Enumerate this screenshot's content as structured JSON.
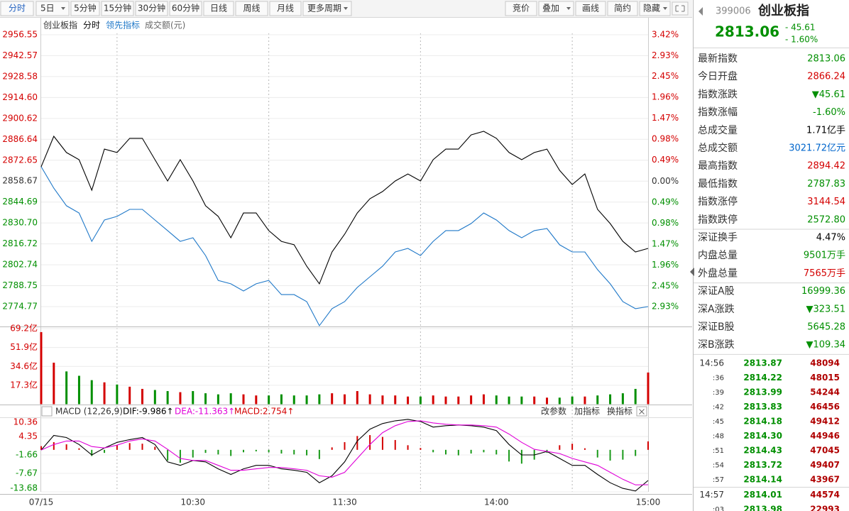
{
  "toolbar": {
    "periods": [
      "分时",
      "5日",
      "5分钟",
      "15分钟",
      "30分钟",
      "60分钟",
      "日线",
      "周线",
      "月线",
      "更多周期"
    ],
    "tools": [
      "竞价",
      "叠加",
      "画线",
      "简约",
      "隐藏"
    ]
  },
  "chart_data": [
    {
      "type": "line",
      "subtitle": "分时",
      "up_color": "#d40000",
      "down_color": "#008f00",
      "x": [
        0,
        5,
        10,
        15,
        20,
        25,
        30,
        35,
        40,
        45,
        50,
        55,
        60,
        65,
        70,
        75,
        80,
        85,
        90,
        95,
        100,
        105,
        110,
        115,
        120,
        125,
        130,
        135,
        140,
        145,
        150,
        155,
        160,
        165,
        170,
        175,
        180,
        185,
        190,
        195,
        200,
        205,
        210,
        215,
        220,
        225,
        230,
        235,
        240
      ],
      "xlim": [
        0,
        240
      ],
      "xgrid": [
        30,
        90,
        150,
        210
      ],
      "ylim": [
        2761.49,
        2957.5
      ],
      "yticks": [
        {
          "value": 2956.55,
          "label": "2956.55"
        },
        {
          "value": 2942.57,
          "label": "2942.57"
        },
        {
          "value": 2928.58,
          "label": "2928.58"
        },
        {
          "value": 2914.6,
          "label": "2914.60"
        },
        {
          "value": 2900.62,
          "label": "2900.62"
        },
        {
          "value": 2886.64,
          "label": "2886.64"
        },
        {
          "value": 2872.65,
          "label": "2872.65"
        },
        {
          "value": 2858.67,
          "label": "2858.67"
        },
        {
          "value": 2844.69,
          "label": "2844.69"
        },
        {
          "value": 2830.7,
          "label": "2830.70"
        },
        {
          "value": 2816.72,
          "label": "2816.72"
        },
        {
          "value": 2802.74,
          "label": "2802.74"
        },
        {
          "value": 2788.75,
          "label": "2788.75"
        },
        {
          "value": 2774.77,
          "label": "2774.77"
        }
      ],
      "y2lim": [
        -3.394,
        3.453
      ],
      "y2ticks": [
        {
          "value": 3.42,
          "label": "3.42%"
        },
        {
          "value": 2.93,
          "label": "2.93%"
        },
        {
          "value": 2.45,
          "label": "2.45%"
        },
        {
          "value": 1.96,
          "label": "1.96%"
        },
        {
          "value": 1.47,
          "label": "1.47%"
        },
        {
          "value": 0.98,
          "label": "0.98%"
        },
        {
          "value": 0.49,
          "label": "0.49%"
        },
        {
          "value": 0,
          "label": "0.00%"
        },
        {
          "value": -0.49,
          "label": "0.49%"
        },
        {
          "value": -0.98,
          "label": "0.98%"
        },
        {
          "value": -1.47,
          "label": "1.47%"
        },
        {
          "value": -1.96,
          "label": "1.96%"
        },
        {
          "value": -2.45,
          "label": "2.45%"
        },
        {
          "value": -2.93,
          "label": "2.93%"
        }
      ],
      "series": [
        {
          "name": "创业板指",
          "color": "#000000",
          "values": [
            2868.3,
            2888.7,
            2877.8,
            2873.0,
            2852.6,
            2880.1,
            2877.8,
            2887.3,
            2887.3,
            2873.0,
            2858.8,
            2873.0,
            2858.8,
            2842.2,
            2835.1,
            2820.8,
            2837.4,
            2837.4,
            2825.6,
            2818.4,
            2816.1,
            2801.8,
            2790.0,
            2811.3,
            2823.2,
            2837.4,
            2846.9,
            2851.7,
            2858.8,
            2863.5,
            2858.8,
            2873.0,
            2880.1,
            2880.1,
            2889.6,
            2892.0,
            2887.3,
            2877.8,
            2873.0,
            2877.8,
            2880.1,
            2865.9,
            2856.4,
            2863.5,
            2839.8,
            2830.3,
            2818.4,
            2811.3,
            2813.7
          ]
        },
        {
          "name": "领先指标",
          "color": "#1f78c8",
          "values": [
            2868.3,
            2854.0,
            2842.2,
            2837.4,
            2818.4,
            2832.7,
            2835.1,
            2839.8,
            2839.8,
            2832.7,
            2825.6,
            2818.4,
            2820.8,
            2808.9,
            2792.3,
            2790.0,
            2785.2,
            2790.0,
            2792.3,
            2782.8,
            2782.8,
            2778.1,
            2762.0,
            2773.4,
            2778.1,
            2787.6,
            2794.7,
            2801.8,
            2811.3,
            2813.7,
            2808.9,
            2818.4,
            2825.6,
            2825.6,
            2830.3,
            2837.4,
            2832.7,
            2825.6,
            2820.8,
            2825.6,
            2827.0,
            2816.1,
            2811.3,
            2811.3,
            2799.5,
            2790.0,
            2778.1,
            2773.4,
            2774.8
          ]
        }
      ]
    },
    {
      "type": "bar",
      "title": "成交额(元)",
      "x": [
        0,
        5,
        10,
        15,
        20,
        25,
        30,
        35,
        40,
        45,
        50,
        55,
        60,
        65,
        70,
        75,
        80,
        85,
        90,
        95,
        100,
        105,
        110,
        115,
        120,
        125,
        130,
        135,
        140,
        145,
        150,
        155,
        160,
        165,
        170,
        175,
        180,
        185,
        190,
        195,
        200,
        205,
        210,
        215,
        220,
        225,
        230,
        235,
        240
      ],
      "xlim": [
        0,
        240
      ],
      "ylim": [
        0,
        70.5
      ],
      "yticks": [
        {
          "value": 69.2,
          "label": "69.2亿"
        },
        {
          "value": 51.9,
          "label": "51.9亿"
        },
        {
          "value": 34.6,
          "label": "34.6亿"
        },
        {
          "value": 17.3,
          "label": "17.3亿"
        }
      ],
      "values": [
        66,
        38,
        30,
        26,
        22,
        20,
        18,
        16,
        14,
        13,
        12,
        11,
        12,
        10,
        9,
        10,
        9,
        8,
        8,
        9,
        8,
        8,
        9,
        10,
        9,
        12,
        9,
        8,
        8,
        7,
        7,
        8,
        7,
        7,
        8,
        9,
        8,
        7,
        7,
        7,
        6,
        6,
        7,
        7,
        8,
        9,
        10,
        14,
        29
      ]
    },
    {
      "type": "macd",
      "title": "MACD (12,26,9)",
      "x": [
        0,
        5,
        10,
        15,
        20,
        25,
        30,
        35,
        40,
        45,
        50,
        55,
        60,
        65,
        70,
        75,
        80,
        85,
        90,
        95,
        100,
        105,
        110,
        115,
        120,
        125,
        130,
        135,
        140,
        145,
        150,
        155,
        160,
        165,
        170,
        175,
        180,
        185,
        190,
        195,
        200,
        205,
        210,
        215,
        220,
        225,
        230,
        235,
        240
      ],
      "xlim": [
        0,
        240
      ],
      "xticks": [
        {
          "value": 0,
          "label": "07/15"
        },
        {
          "value": 60,
          "label": "10:30"
        },
        {
          "value": 120,
          "label": "11:30"
        },
        {
          "value": 180,
          "label": "14:00"
        },
        {
          "value": 240,
          "label": "15:00"
        }
      ],
      "ylim": [
        -13.68,
        10.36
      ],
      "yticks": [
        10.36,
        4.35,
        -1.66,
        -7.67,
        -13.68
      ],
      "series": [
        {
          "name": "DIF:-9.986↑",
          "color": "#000000",
          "values": [
            -0.07,
            4.69,
            4.01,
            1.74,
            -1.66,
            0.61,
            2.42,
            3.33,
            4.01,
            1.74,
            -3.93,
            -5.06,
            -3.47,
            -3.93,
            -6.19,
            -8.01,
            -6.19,
            -5.06,
            -5.06,
            -6.19,
            -6.65,
            -7.33,
            -10.73,
            -8.46,
            -3.93,
            2.88,
            6.73,
            8.55,
            9.45,
            9.91,
            9.23,
            7.41,
            7.87,
            8.09,
            7.87,
            7.41,
            6.28,
            1.74,
            -1.66,
            -1.66,
            -0.52,
            -2.79,
            -5.06,
            -5.06,
            -8.01,
            -10.73,
            -12.54,
            -13.4,
            -9.986
          ]
        },
        {
          "name": "DEA:-11.363↑",
          "color": "#e000d8",
          "values": [
            -0.07,
            1.74,
            2.88,
            2.88,
            1.06,
            0.61,
            1.52,
            2.88,
            3.56,
            2.88,
            0.16,
            -2.79,
            -3.47,
            -3.47,
            -5.06,
            -6.65,
            -6.65,
            -6.19,
            -5.74,
            -5.74,
            -6.19,
            -6.65,
            -8.46,
            -8.91,
            -7.33,
            -2.79,
            1.74,
            5.6,
            7.87,
            9.23,
            9.45,
            8.77,
            8.32,
            8.09,
            8.09,
            7.87,
            7.41,
            5.14,
            2.42,
            0.16,
            -0.52,
            -1.2,
            -2.79,
            -3.93,
            -5.06,
            -7.33,
            -9.59,
            -11.41,
            -11.363
          ]
        },
        {
          "name": "MACD:2.754↑",
          "color": "#d40000",
          "negative_color": "#1a9a1a",
          "values": [
            1.2,
            2.5,
            1.8,
            0.5,
            -2.0,
            -1.0,
            1.5,
            2.2,
            2.0,
            1.0,
            -3.5,
            -4.2,
            -2.5,
            -1.0,
            -1.5,
            -2.0,
            -0.8,
            -0.5,
            -0.8,
            -1.2,
            -1.5,
            -1.8,
            -3.0,
            0.8,
            2.5,
            4.5,
            4.8,
            4.2,
            3.2,
            1.5,
            0.6,
            -0.8,
            -1.5,
            -1.8,
            -1.2,
            -0.8,
            -1.5,
            -3.8,
            -4.5,
            -3.2,
            -1.0,
            1.5,
            2.0,
            0.5,
            -2.5,
            -3.5,
            -3.2,
            -2.0,
            2.754
          ]
        }
      ]
    }
  ],
  "indicator_actions": [
    "改参数",
    "加指标",
    "换指标"
  ],
  "quote": {
    "code": "399006",
    "name": "创业板指",
    "price": "2813.06",
    "change": "- 45.61",
    "change_pct": "- 1.60%",
    "price_color": "#008f00",
    "groups": [
      [
        {
          "label": "最新指数",
          "value": "2813.06",
          "color": "#008f00"
        },
        {
          "label": "今日开盘",
          "value": "2866.24",
          "color": "#d40000"
        },
        {
          "label": "指数涨跌",
          "value": "▼45.61",
          "color": "#008f00"
        },
        {
          "label": "指数涨幅",
          "value": "-1.60%",
          "color": "#008f00"
        },
        {
          "label": "总成交量",
          "value": "1.71亿手",
          "color": "#000000"
        },
        {
          "label": "总成交额",
          "value": "3021.72亿元",
          "color": "#0066cc"
        },
        {
          "label": "最高指数",
          "value": "2894.42",
          "color": "#d40000"
        },
        {
          "label": "最低指数",
          "value": "2787.83",
          "color": "#008f00"
        },
        {
          "label": "指数涨停",
          "value": "3144.54",
          "color": "#d40000"
        },
        {
          "label": "指数跌停",
          "value": "2572.80",
          "color": "#008f00"
        }
      ],
      [
        {
          "label": "深证换手",
          "value": "4.47%",
          "color": "#000000"
        },
        {
          "label": "内盘总量",
          "value": "9501万手",
          "color": "#008f00"
        },
        {
          "label": "外盘总量",
          "value": "7565万手",
          "color": "#d40000"
        }
      ],
      [
        {
          "label": "深证A股",
          "value": "16999.36",
          "color": "#008f00"
        },
        {
          "label": "深A涨跌",
          "value": "▼323.51",
          "color": "#008f00"
        },
        {
          "label": "深证B股",
          "value": "5645.28",
          "color": "#008f00"
        },
        {
          "label": "深B涨跌",
          "value": "▼109.34",
          "color": "#008f00"
        }
      ]
    ],
    "tick_colors": [
      "#333333",
      "#008f00",
      "#b00000"
    ],
    "ticks": [
      [
        "14:56",
        "2813.87",
        "48094"
      ],
      [
        ":36",
        "2814.22",
        "48015"
      ],
      [
        ":39",
        "2813.99",
        "54244"
      ],
      [
        ":42",
        "2813.83",
        "46456"
      ],
      [
        ":45",
        "2814.18",
        "49412"
      ],
      [
        ":48",
        "2814.30",
        "44946"
      ],
      [
        ":51",
        "2814.43",
        "47045"
      ],
      [
        ":54",
        "2813.72",
        "49407"
      ],
      [
        ":57",
        "2814.14",
        "43967"
      ],
      [
        "14:57",
        "2814.01",
        "44574"
      ],
      [
        ":03",
        "2813.98",
        "22993"
      ]
    ]
  }
}
